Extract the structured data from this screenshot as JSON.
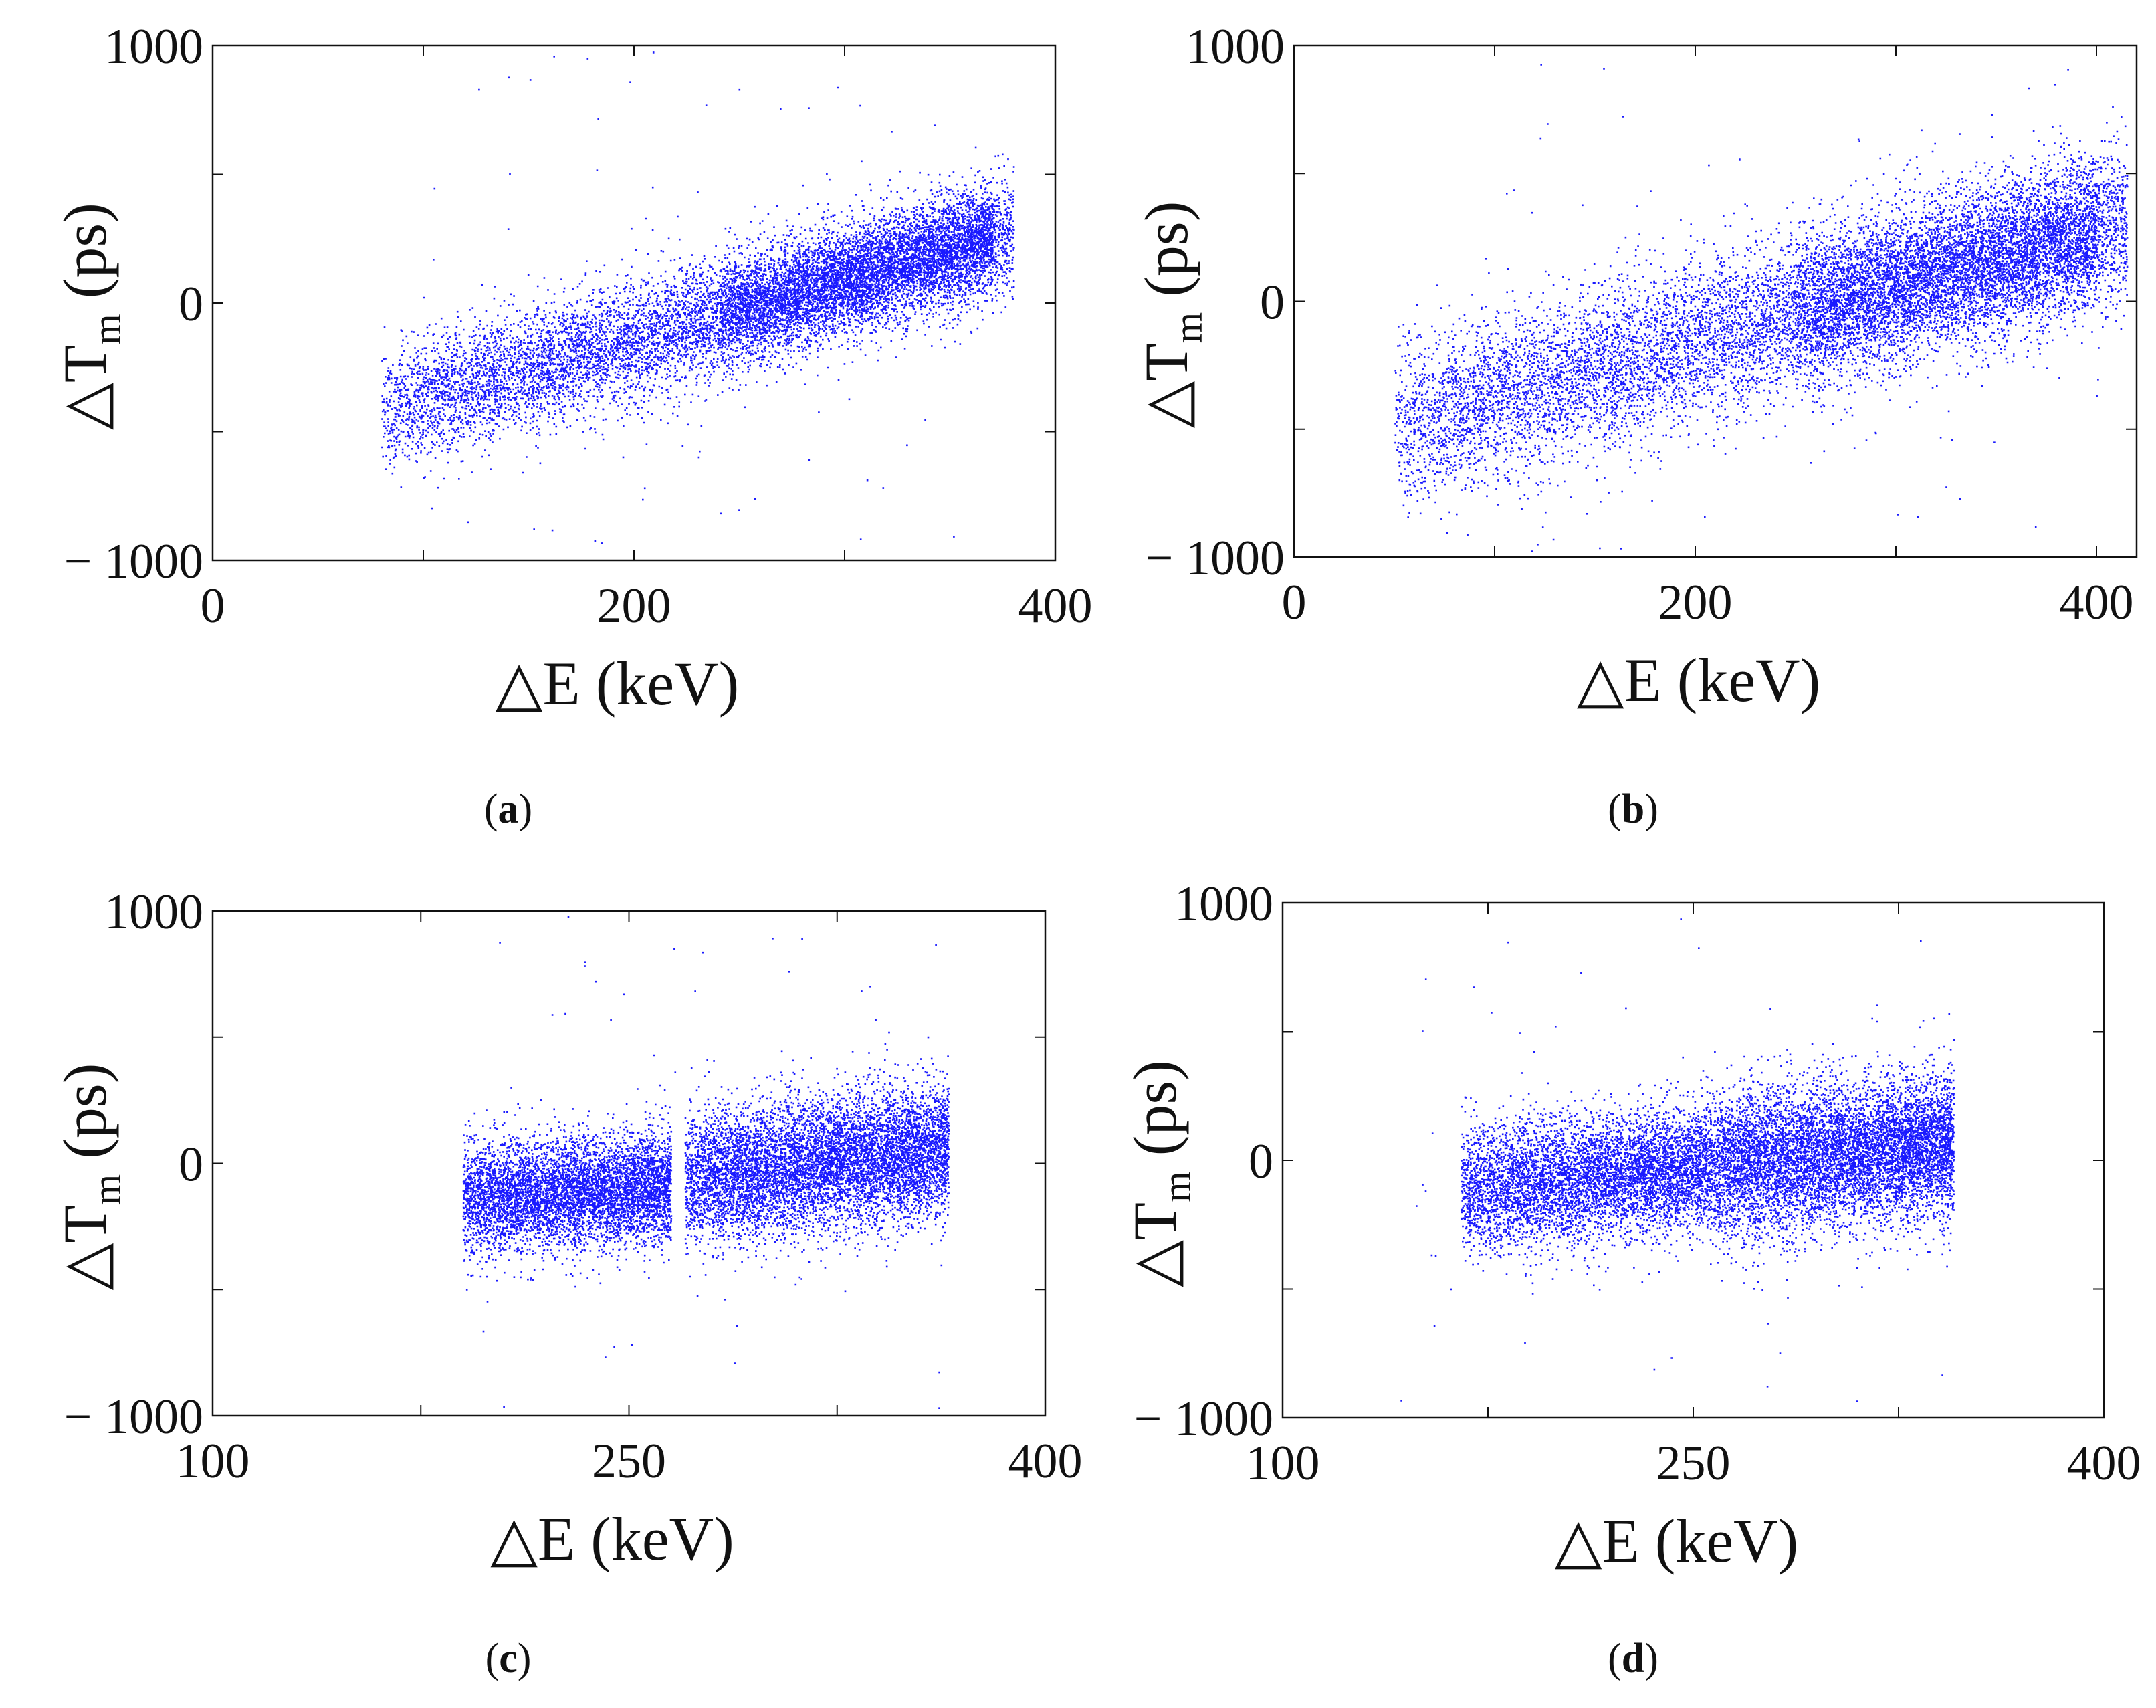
{
  "figure": {
    "marker_color": "#1a1aff"
  },
  "chart_data": [
    {
      "id": "a",
      "type": "scatter",
      "panel_label": "a",
      "xlabel": "△E (keV)",
      "ylabel_main": "△T",
      "ylabel_sub": "m",
      "ylabel_unit": "(ps)",
      "xlim": [
        0,
        400
      ],
      "ylim": [
        -1000,
        1000
      ],
      "xticks": [
        0,
        200,
        400
      ],
      "xticks_minor": [
        100,
        300
      ],
      "yticks": [
        -1000,
        0,
        1000
      ],
      "yticks_minor": [
        -500,
        500
      ],
      "ytick_labels": [
        "− 1000",
        "0",
        "1000"
      ],
      "clusters": [
        {
          "n": 9000,
          "x_range": [
            80,
            380
          ],
          "slope": 2.3,
          "intercept": -600,
          "y_sigma": 115
        },
        {
          "n": 4000,
          "x_range": [
            240,
            370
          ],
          "slope": 2.3,
          "intercept": -600,
          "y_sigma": 90
        }
      ],
      "outliers": {
        "n": 90,
        "x_range": [
          100,
          360
        ],
        "y_range": [
          -980,
          980
        ]
      }
    },
    {
      "id": "b",
      "type": "scatter",
      "panel_label": "b",
      "xlabel": "△E (keV)",
      "ylabel_main": "△T",
      "ylabel_sub": "m",
      "ylabel_unit": "(ps)",
      "xlim": [
        0,
        420
      ],
      "ylim": [
        -1000,
        1000
      ],
      "xticks": [
        0,
        200,
        400
      ],
      "xticks_minor": [
        100,
        300
      ],
      "yticks": [
        -1000,
        0,
        1000
      ],
      "yticks_minor": [
        -500,
        500
      ],
      "ytick_labels": [
        "− 1000",
        "0",
        "1000"
      ],
      "clusters": [
        {
          "n": 10000,
          "x_range": [
            50,
            415
          ],
          "slope": 2.2,
          "intercept": -600,
          "y_sigma": 160
        },
        {
          "n": 4000,
          "x_range": [
            250,
            400
          ],
          "slope": 2.2,
          "intercept": -600,
          "y_sigma": 130
        }
      ],
      "outliers": {
        "n": 80,
        "x_range": [
          80,
          400
        ],
        "y_range": [
          -980,
          980
        ]
      }
    },
    {
      "id": "c",
      "type": "scatter",
      "panel_label": "c",
      "xlabel": "△E (keV)",
      "ylabel_main": "△T",
      "ylabel_sub": "m",
      "ylabel_unit": "(ps)",
      "xlim": [
        100,
        400
      ],
      "ylim": [
        -1000,
        1000
      ],
      "xticks": [
        100,
        250,
        400
      ],
      "xticks_minor": [
        175,
        325
      ],
      "yticks": [
        -1000,
        0,
        1000
      ],
      "yticks_minor": [
        -500,
        500
      ],
      "ytick_labels": [
        "− 1000",
        "0",
        "1000"
      ],
      "clusters": [
        {
          "n": 6000,
          "x_range": [
            190,
            265
          ],
          "slope": 0.6,
          "intercept": -250,
          "y_sigma": 110
        },
        {
          "n": 8000,
          "x_range": [
            270,
            365
          ],
          "slope": 1.2,
          "intercept": -380,
          "y_sigma": 130
        }
      ],
      "outliers": {
        "n": 60,
        "x_range": [
          190,
          365
        ],
        "y_range": [
          -980,
          980
        ]
      }
    },
    {
      "id": "d",
      "type": "scatter",
      "panel_label": "d",
      "xlabel": "△E (keV)",
      "ylabel_main": "△T",
      "ylabel_sub": "m",
      "ylabel_unit": "(ps)",
      "xlim": [
        100,
        400
      ],
      "ylim": [
        -1000,
        1000
      ],
      "xticks": [
        100,
        250,
        400
      ],
      "xticks_minor": [
        175,
        325
      ],
      "yticks": [
        -1000,
        0,
        1000
      ],
      "yticks_minor": [
        -500,
        500
      ],
      "ytick_labels": [
        "− 1000",
        "0",
        "1000"
      ],
      "clusters": [
        {
          "n": 6000,
          "x_range": [
            165,
            255
          ],
          "slope": 1.0,
          "intercept": -280,
          "y_sigma": 120
        },
        {
          "n": 8000,
          "x_range": [
            255,
            345
          ],
          "slope": 1.0,
          "intercept": -280,
          "y_sigma": 140
        }
      ],
      "outliers": {
        "n": 60,
        "x_range": [
          140,
          345
        ],
        "y_range": [
          -960,
          960
        ]
      }
    }
  ],
  "captions": [
    "a",
    "b",
    "c",
    "d"
  ]
}
